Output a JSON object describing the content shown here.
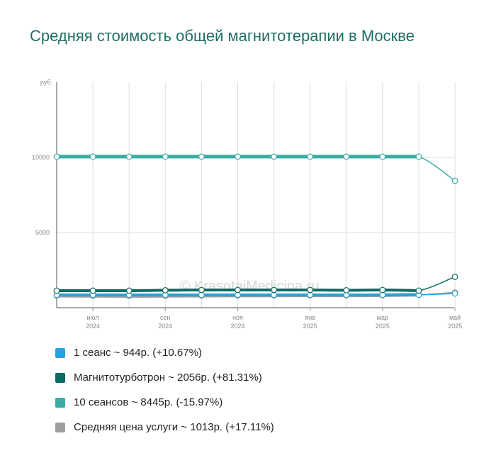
{
  "chart_data": {
    "type": "line",
    "title": "Средняя стоимость общей магнитотерапии в Москве",
    "ylabel": "руб.",
    "ylim": [
      0,
      15000
    ],
    "yticks": [
      {
        "value": 10000,
        "label": "10000"
      },
      {
        "value": 5000,
        "label": "5000"
      }
    ],
    "xticks": [
      {
        "i": 1,
        "month": "июл",
        "year": "2024"
      },
      {
        "i": 3,
        "month": "сен",
        "year": "2024"
      },
      {
        "i": 5,
        "month": "ноя",
        "year": "2024"
      },
      {
        "i": 7,
        "month": "янв",
        "year": "2025"
      },
      {
        "i": 9,
        "month": "мар",
        "year": "2025"
      },
      {
        "i": 11,
        "month": "май",
        "year": "2025"
      }
    ],
    "x": [
      "2024-06",
      "2024-07",
      "2024-08",
      "2024-09",
      "2024-10",
      "2024-11",
      "2024-12",
      "2025-01",
      "2025-02",
      "2025-03",
      "2025-04",
      "2025-05"
    ],
    "series": [
      {
        "name": "1 сеанс",
        "color": "#2b9fe0",
        "values": [
          850,
          850,
          850,
          850,
          850,
          850,
          850,
          850,
          850,
          850,
          853,
          944
        ]
      },
      {
        "name": "Магнитотурботрон",
        "color": "#0d6b63",
        "values": [
          1134,
          1134,
          1134,
          1160,
          1180,
          1180,
          1180,
          1180,
          1160,
          1180,
          1134,
          2056
        ]
      },
      {
        "name": "10 сеансов",
        "color": "#3aaca5",
        "values": [
          10050,
          10050,
          10050,
          10050,
          10050,
          10050,
          10050,
          10050,
          10050,
          10050,
          10050,
          8445
        ]
      },
      {
        "name": "Средняя цена услуги",
        "color": "#9e9e9e",
        "values": [
          800,
          790,
          780,
          790,
          800,
          810,
          815,
          820,
          820,
          830,
          865,
          1013
        ]
      }
    ],
    "legend": [
      "1 сеанс ~ 944р. (+10.67%)",
      "Магнитотурботрон ~ 2056р. (+81.31%)",
      "10 сеансов ~ 8445р. (-15.97%)",
      "Средняя цена услуги ~ 1013р. (+17.11%)"
    ],
    "watermark": "© KrasotaiMedicina.ru",
    "grid": true,
    "legend_position": "bottom"
  }
}
